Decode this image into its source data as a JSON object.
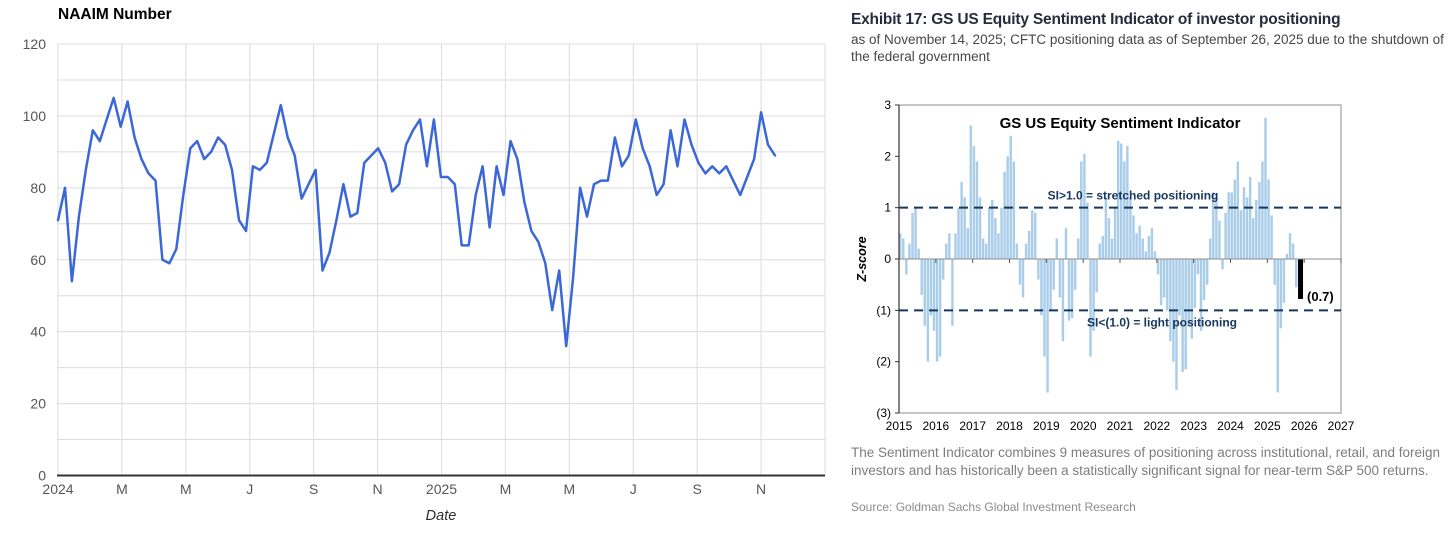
{
  "exhibit": {
    "title": "Exhibit 17: GS US Equity Sentiment Indicator of investor positioning",
    "subtitle": "as of November 14, 2025; CFTC positioning data as of September 26, 2025 due to the shutdown of the federal government",
    "footnote": "The Sentiment Indicator combines 9 measures of positioning across institutional, retail, and foreign investors and has historically been a statistically significant signal for near-term S&P 500 returns.",
    "source": "Source: Goldman Sachs Global Investment Research"
  },
  "chart_data": [
    {
      "type": "line",
      "title": "NAAIM Number",
      "xlabel": "Date",
      "ylabel": "",
      "ylim": [
        0,
        120
      ],
      "y_ticks": [
        0,
        20,
        40,
        60,
        80,
        100,
        120
      ],
      "y_minor_grid_step": 10,
      "grid": true,
      "x_tick_labels": [
        "2024",
        "M",
        "M",
        "J",
        "S",
        "N",
        "2025",
        "M",
        "M",
        "J",
        "S",
        "N"
      ],
      "frequency": "weekly",
      "x_start": "2024-01",
      "x_end": "2025-11",
      "line_color": "#3b67d8",
      "series": [
        {
          "name": "NAAIM Number",
          "values": [
            71,
            80,
            54,
            72,
            85,
            96,
            93,
            99,
            105,
            97,
            104,
            94,
            88,
            84,
            82,
            60,
            59,
            63,
            78,
            91,
            93,
            88,
            90,
            94,
            92,
            85,
            71,
            68,
            86,
            85,
            87,
            95,
            103,
            94,
            89,
            77,
            81,
            85,
            57,
            62,
            71,
            81,
            72,
            73,
            87,
            89,
            91,
            87,
            79,
            81,
            92,
            96,
            99,
            86,
            99,
            83,
            83,
            81,
            64,
            64,
            78,
            86,
            69,
            86,
            78,
            93,
            88,
            76,
            68,
            65,
            59,
            46,
            57,
            36,
            55,
            80,
            72,
            81,
            82,
            82,
            94,
            86,
            89,
            99,
            91,
            86,
            78,
            81,
            96,
            86,
            99,
            92,
            87,
            84,
            86,
            84,
            86,
            82,
            78,
            83,
            88,
            101,
            92,
            89
          ]
        }
      ]
    },
    {
      "type": "bar",
      "title": "GS US Equity Sentiment Indicator",
      "ylabel": "Z-score",
      "ylim": [
        -3,
        3
      ],
      "y_tick_labels": [
        "3",
        "2",
        "1",
        "0",
        "(1)",
        "(2)",
        "(3)"
      ],
      "y_tick_values": [
        3,
        2,
        1,
        0,
        -1,
        -2,
        -3
      ],
      "x_tick_labels": [
        "2015",
        "2016",
        "2017",
        "2018",
        "2019",
        "2020",
        "2021",
        "2022",
        "2023",
        "2024",
        "2025",
        "2026",
        "2027"
      ],
      "frequency": "monthly",
      "x_start": "2015-01",
      "x_end": "2025-10",
      "bar_color": "#aacde9",
      "reference_lines": [
        {
          "value": 1.0,
          "label": "SI>1.0 = stretched positioning",
          "color": "#17375e"
        },
        {
          "value": -1.0,
          "label": "SI<(1.0) = light positioning",
          "color": "#17375e"
        }
      ],
      "values": [
        0.5,
        0.4,
        -0.3,
        0.3,
        0.9,
        1.0,
        0.2,
        -0.7,
        -1.3,
        -2.0,
        -1.1,
        -1.4,
        -2.0,
        -1.9,
        -0.4,
        0.3,
        0.5,
        -1.3,
        0.5,
        1.0,
        1.5,
        1.2,
        0.6,
        2.6,
        2.2,
        1.9,
        1.2,
        0.4,
        0.3,
        1.0,
        1.15,
        0.8,
        0.5,
        1.0,
        1.7,
        2.0,
        2.4,
        1.9,
        0.3,
        -0.5,
        -0.75,
        0.3,
        0.55,
        0.95,
        0.9,
        -0.4,
        -1.1,
        -1.9,
        -2.6,
        -1.0,
        -0.6,
        0.4,
        -0.75,
        -1.6,
        0.6,
        -1.2,
        -1.15,
        -0.6,
        0.4,
        1.9,
        2.05,
        1.1,
        -1.9,
        -1.4,
        -0.65,
        0.3,
        0.45,
        1.2,
        0.8,
        0.4,
        1.0,
        2.3,
        2.25,
        1.9,
        2.2,
        1.2,
        0.85,
        0.5,
        0.65,
        0.4,
        0.15,
        0.45,
        0.6,
        0.15,
        -0.3,
        -0.9,
        -0.75,
        -1.0,
        -1.6,
        -2.0,
        -2.55,
        -1.1,
        -2.2,
        -2.15,
        -1.3,
        -1.55,
        -0.95,
        -0.3,
        -1.4,
        -0.8,
        -0.5,
        0.4,
        1.3,
        1.2,
        0.75,
        -0.2,
        0.9,
        1.3,
        1.3,
        1.55,
        1.9,
        0.95,
        1.4,
        1.2,
        1.6,
        0.8,
        1.15,
        1.5,
        1.9,
        2.75,
        1.55,
        0.85,
        -0.5,
        -2.6,
        -1.35,
        -0.85,
        0.1,
        0.5,
        0.3,
        -0.55
      ],
      "current_bar": {
        "value": -0.7,
        "label": "(0.7)",
        "color": "#000000",
        "period": "2025-11"
      }
    }
  ]
}
